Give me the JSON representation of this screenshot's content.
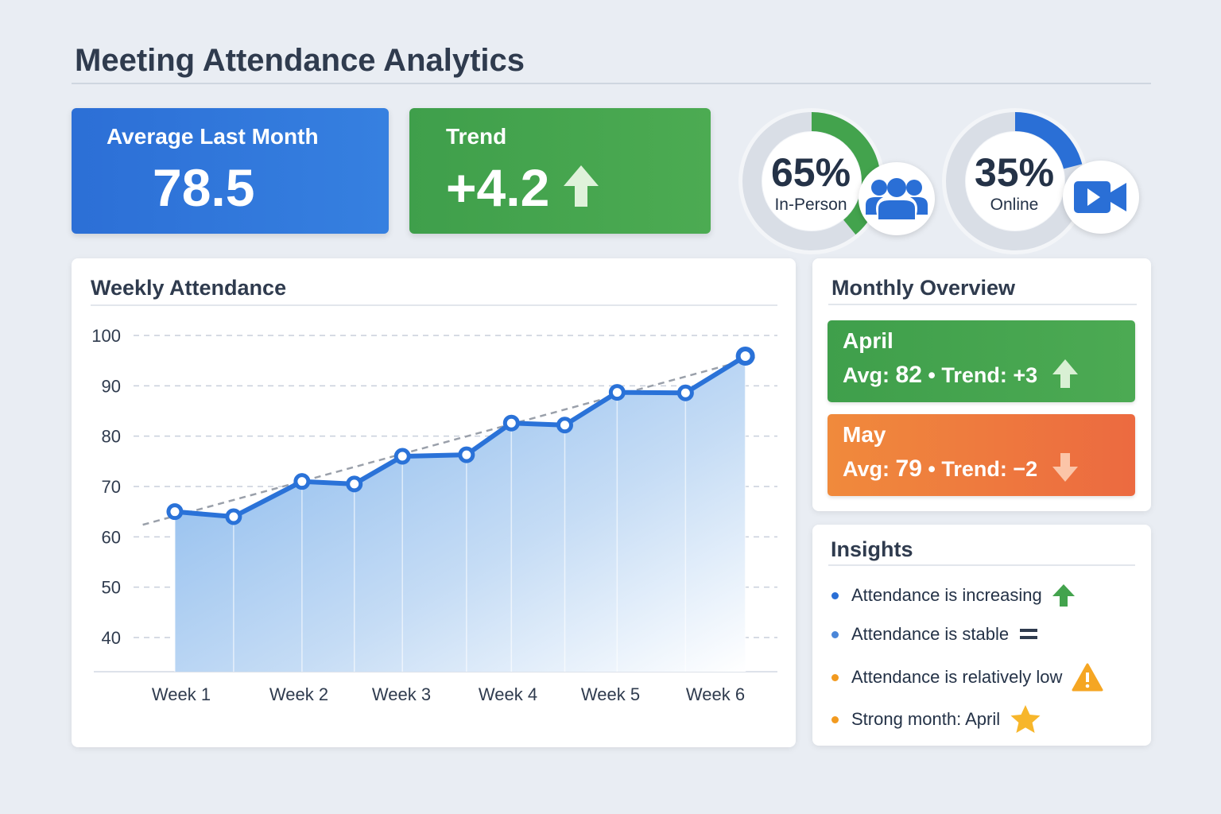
{
  "title": "Meeting Attendance Analytics",
  "kpis": {
    "average": {
      "label": "Average Last Month",
      "value": "78.5"
    },
    "trend": {
      "label": "Trend",
      "value": "+4.2",
      "icon": "arrow-up-icon"
    }
  },
  "split": [
    {
      "percent": 65,
      "display": "65%",
      "label": "In-Person",
      "color": "#43a34d",
      "icon": "people-group-icon"
    },
    {
      "percent": 35,
      "display": "35%",
      "label": "Online",
      "color": "#2a6fd6",
      "icon": "video-camera-icon"
    }
  ],
  "chart_data": {
    "type": "line",
    "title": "Weekly Attendance",
    "xlabel": "",
    "ylabel": "",
    "ylim": [
      33,
      100
    ],
    "yticks": [
      100,
      90,
      80,
      70,
      60,
      50,
      40
    ],
    "x_tick_labels": [
      "Week 1",
      "Week 2",
      "Week 3",
      "Week 4",
      "Week 5",
      "Week 6"
    ],
    "grid": true,
    "series": [
      {
        "name": "Attendance",
        "color": "#2a72d8",
        "x": [
          0.94,
          1.49,
          2.13,
          2.62,
          3.07,
          3.67,
          4.09,
          4.59,
          5.08,
          5.72,
          6.28
        ],
        "values": [
          65,
          64,
          71,
          70.5,
          76,
          76.3,
          82.6,
          82.2,
          88.7,
          88.6,
          95.9
        ]
      }
    ],
    "trendline": {
      "x": [
        0.64,
        6.37
      ],
      "values": [
        62.4,
        95.6
      ]
    }
  },
  "monthly": {
    "title": "Monthly Overview",
    "items": [
      {
        "month": "April",
        "avg_label": "Avg:",
        "avg": "82",
        "sep": "•",
        "trend_label": "Trend:",
        "trend": "+3",
        "direction": "up"
      },
      {
        "month": "May",
        "avg_label": "Avg:",
        "avg": "79",
        "sep": "•",
        "trend_label": "Trend:",
        "trend": "−2",
        "direction": "down"
      }
    ]
  },
  "insights": {
    "title": "Insights",
    "items": [
      {
        "text": "Attendance is increasing",
        "bullet": "#2a6fd6",
        "icon": "arrow-up-icon"
      },
      {
        "text": "Attendance is stable",
        "bullet": "#4a86d8",
        "icon": "equals-icon"
      },
      {
        "text": "Attendance is relatively low",
        "bullet": "#f29a1f",
        "icon": "warning-icon"
      },
      {
        "text": "Strong month: April",
        "bullet": "#f29a1f",
        "icon": "star-icon"
      }
    ]
  }
}
